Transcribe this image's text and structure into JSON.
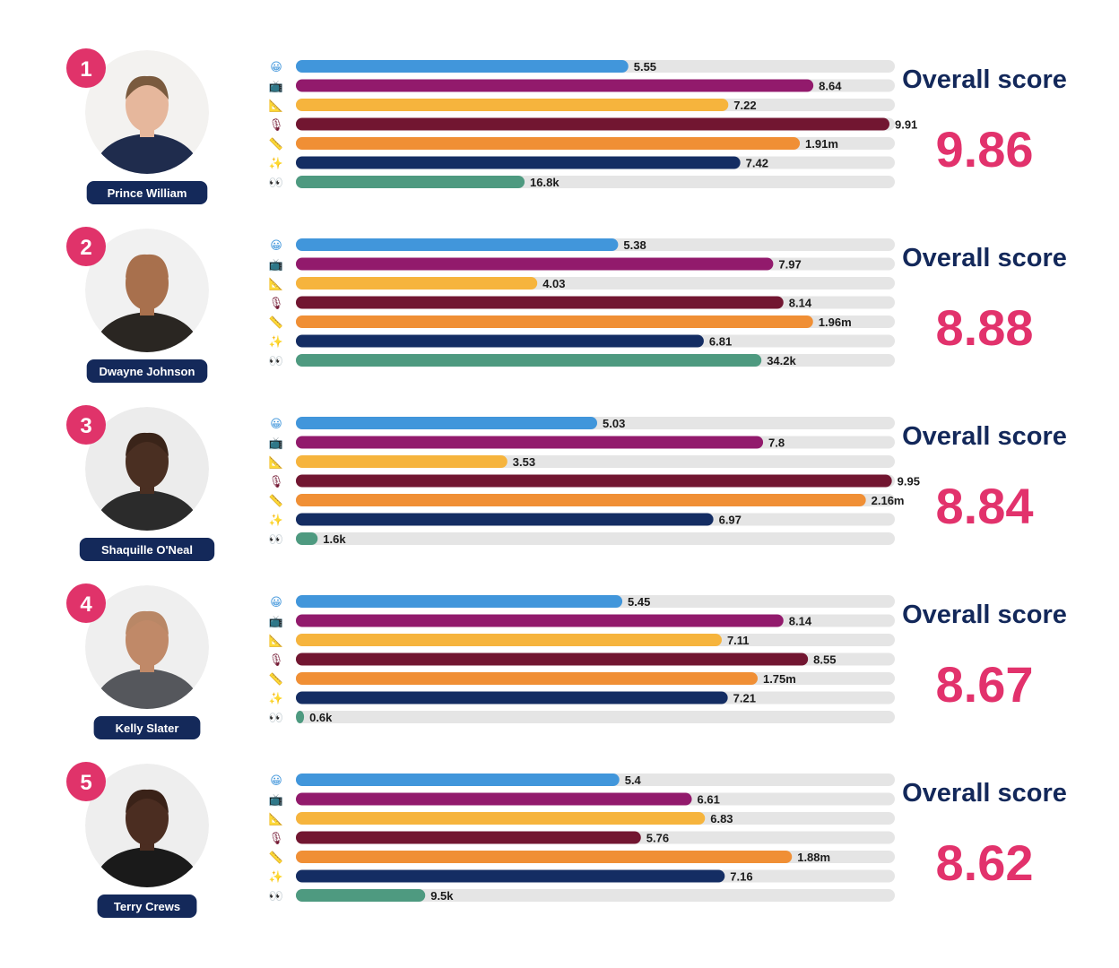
{
  "title": "",
  "metric_icons": [
    {
      "emoji": "😀",
      "icon": "grinning-face-icon",
      "color": "#4196db"
    },
    {
      "emoji": "📺",
      "icon": "television-icon",
      "color": "#921a6c"
    },
    {
      "emoji": "📐",
      "icon": "triangular-ruler-icon",
      "color": "#f6b43d"
    },
    {
      "emoji": "🎙",
      "icon": "microphone-icon",
      "color": "#721631"
    },
    {
      "emoji": "📏",
      "icon": "straight-ruler-icon",
      "color": "#f08f35"
    },
    {
      "emoji": "✨",
      "icon": "sparkles-icon",
      "color": "#142d63"
    },
    {
      "emoji": "👀",
      "icon": "eyes-icon",
      "color": "#4e9a80"
    }
  ],
  "chart_data": {
    "type": "bar",
    "orientation": "horizontal",
    "grid": false,
    "legend": "none",
    "overall_label": "Overall score",
    "series": [
      {
        "metric_icon": "grinning-face-icon",
        "values": [
          5.55,
          5.38,
          5.03,
          5.45,
          5.4
        ],
        "labels": [
          "5.55",
          "5.38",
          "5.03",
          "5.45",
          "5.4"
        ],
        "xlim": [
          0,
          10
        ]
      },
      {
        "metric_icon": "television-icon",
        "values": [
          8.64,
          7.97,
          7.8,
          8.14,
          6.61
        ],
        "labels": [
          "8.64",
          "7.97",
          "7.8",
          "8.14",
          "6.61"
        ],
        "xlim": [
          0,
          10
        ]
      },
      {
        "metric_icon": "triangular-ruler-icon",
        "values": [
          7.22,
          4.03,
          3.53,
          7.11,
          6.83
        ],
        "labels": [
          "7.22",
          "4.03",
          "3.53",
          "7.11",
          "6.83"
        ],
        "xlim": [
          0,
          10
        ]
      },
      {
        "metric_icon": "microphone-icon",
        "values": [
          9.91,
          8.14,
          9.95,
          8.55,
          5.76
        ],
        "labels": [
          "9.91",
          "8.14",
          "9.95",
          "8.55",
          "5.76"
        ],
        "xlim": [
          0,
          10
        ]
      },
      {
        "metric_icon": "straight-ruler-icon",
        "values": [
          1.91,
          1.96,
          2.16,
          1.75,
          1.88
        ],
        "labels": [
          "1.91m",
          "1.96m",
          "2.16m",
          "1.75m",
          "1.88m"
        ],
        "xlim": [
          0,
          2.27
        ]
      },
      {
        "metric_icon": "sparkles-icon",
        "values": [
          7.42,
          6.81,
          6.97,
          7.21,
          7.16
        ],
        "labels": [
          "7.42",
          "6.81",
          "6.97",
          "7.21",
          "7.16"
        ],
        "xlim": [
          0,
          10
        ]
      },
      {
        "metric_icon": "eyes-icon",
        "values": [
          16.8,
          34.2,
          1.6,
          0.6,
          9.5
        ],
        "labels": [
          "16.8k",
          "34.2k",
          "1.6k",
          "0.6k",
          "9.5k"
        ],
        "xlim": [
          0,
          44
        ]
      }
    ],
    "people": [
      {
        "rank": "1",
        "name": "Prince William",
        "overall": "9.86",
        "face": {
          "skin": "#e6b79c",
          "hair": "#7a5a3e",
          "shirt": "#1f2c4d",
          "bg": "#f3f2f0"
        }
      },
      {
        "rank": "2",
        "name": "Dwayne Johnson",
        "overall": "8.88",
        "face": {
          "skin": "#a8704d",
          "hair": "#a8704d",
          "shirt": "#2a2622",
          "bg": "#f1f1f1"
        }
      },
      {
        "rank": "3",
        "name": "Shaquille O'Neal",
        "overall": "8.84",
        "face": {
          "skin": "#4a2f22",
          "hair": "#3a2419",
          "shirt": "#2b2b2b",
          "bg": "#ececec"
        }
      },
      {
        "rank": "4",
        "name": "Kelly Slater",
        "overall": "8.67",
        "face": {
          "skin": "#c08968",
          "hair": "#b98766",
          "shirt": "#55575c",
          "bg": "#efefef"
        }
      },
      {
        "rank": "5",
        "name": "Terry Crews",
        "overall": "8.62",
        "face": {
          "skin": "#4b2d21",
          "hair": "#3a2218",
          "shirt": "#1a1a1a",
          "bg": "#eeeeee"
        }
      }
    ]
  },
  "colors": {
    "rank_badge": "#e0336a",
    "name_pill": "#14295a",
    "overall_title": "#13285a",
    "overall_value": "#e2326c",
    "track": "#e5e5e5",
    "value_text": "#1b1b1b"
  }
}
